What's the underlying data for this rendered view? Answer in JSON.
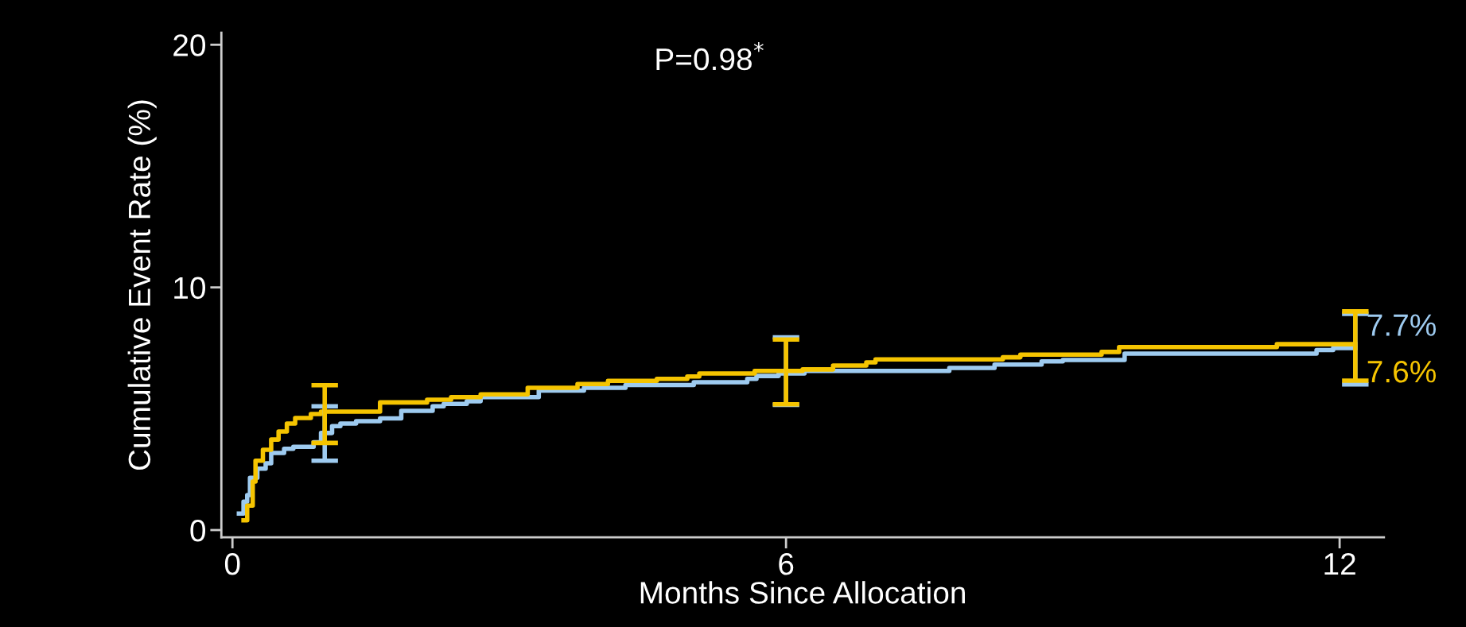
{
  "chart_data": {
    "type": "step",
    "xlabel": "Months Since Allocation",
    "ylabel": "Cumulative Event Rate (%)",
    "xlim": [
      -0.12,
      12.48
    ],
    "ylim": [
      -0.3,
      20.5
    ],
    "xticks": [
      0,
      6,
      12
    ],
    "yticks": [
      0,
      10,
      20
    ],
    "grid": false,
    "marker": "none",
    "line_style": "solid",
    "annotations": [
      "P=0.98$^{*}$",
      {
        "text": "7.7%",
        "x": 12.17,
        "y": 7.7
      },
      {
        "text": "7.6%",
        "x": 12.17,
        "y": 7.6
      }
    ],
    "series": [
      {
        "color": "#9ecbf0",
        "x": [
          0.07,
          0.12,
          0.16,
          0.19,
          0.27,
          0.36,
          0.42,
          0.56,
          0.66,
          0.88,
          0.96,
          1.0,
          1.08,
          1.17,
          1.34,
          1.6,
          1.83,
          2.17,
          2.29,
          2.54,
          2.69,
          3.32,
          3.81,
          4.26,
          5.0,
          5.58,
          5.68,
          5.92,
          6.0,
          6.2,
          7.77,
          8.26,
          8.77,
          9.0,
          9.67,
          11.75,
          11.93,
          12.17
        ],
        "values": [
          0.68,
          1.17,
          1.44,
          2.15,
          2.53,
          2.75,
          3.18,
          3.35,
          3.43,
          3.62,
          4.0,
          4.0,
          4.28,
          4.39,
          4.49,
          4.6,
          4.91,
          5.1,
          5.2,
          5.31,
          5.48,
          5.75,
          5.86,
          5.98,
          6.09,
          6.23,
          6.35,
          6.45,
          6.45,
          6.56,
          6.68,
          6.82,
          6.95,
          7.01,
          7.27,
          7.42,
          7.5,
          7.5
        ],
        "errors": [
          null,
          null,
          null,
          null,
          null,
          null,
          null,
          null,
          null,
          null,
          null,
          [
            2.86,
            5.1
          ],
          null,
          null,
          null,
          null,
          null,
          null,
          null,
          null,
          null,
          null,
          null,
          null,
          null,
          null,
          null,
          null,
          [
            5.16,
            7.94
          ],
          null,
          null,
          null,
          null,
          null,
          null,
          null,
          null,
          [
            6.0,
            8.91
          ]
        ]
      },
      {
        "color": "#f5c400",
        "x": [
          0.12,
          0.16,
          0.22,
          0.25,
          0.33,
          0.42,
          0.5,
          0.59,
          0.68,
          0.85,
          0.96,
          1.0,
          1.6,
          2.11,
          2.37,
          2.69,
          3.2,
          3.74,
          4.07,
          4.6,
          4.93,
          5.06,
          5.66,
          6.0,
          6.18,
          6.51,
          6.87,
          6.97,
          8.35,
          8.54,
          9.42,
          9.61,
          11.32,
          12.17
        ],
        "values": [
          0.4,
          1.01,
          2.0,
          2.86,
          3.31,
          3.73,
          4.06,
          4.39,
          4.62,
          4.78,
          4.88,
          4.88,
          5.26,
          5.37,
          5.48,
          5.59,
          5.86,
          6.02,
          6.15,
          6.23,
          6.33,
          6.45,
          6.56,
          6.56,
          6.62,
          6.78,
          6.91,
          7.03,
          7.12,
          7.23,
          7.34,
          7.54,
          7.66,
          7.66
        ],
        "errors": [
          null,
          null,
          null,
          null,
          null,
          null,
          null,
          null,
          null,
          null,
          null,
          [
            3.59,
            5.97
          ],
          null,
          null,
          null,
          null,
          null,
          null,
          null,
          null,
          null,
          null,
          null,
          [
            5.18,
            7.85
          ],
          null,
          null,
          null,
          null,
          null,
          null,
          null,
          null,
          null,
          [
            6.16,
            9.01
          ]
        ]
      }
    ]
  }
}
